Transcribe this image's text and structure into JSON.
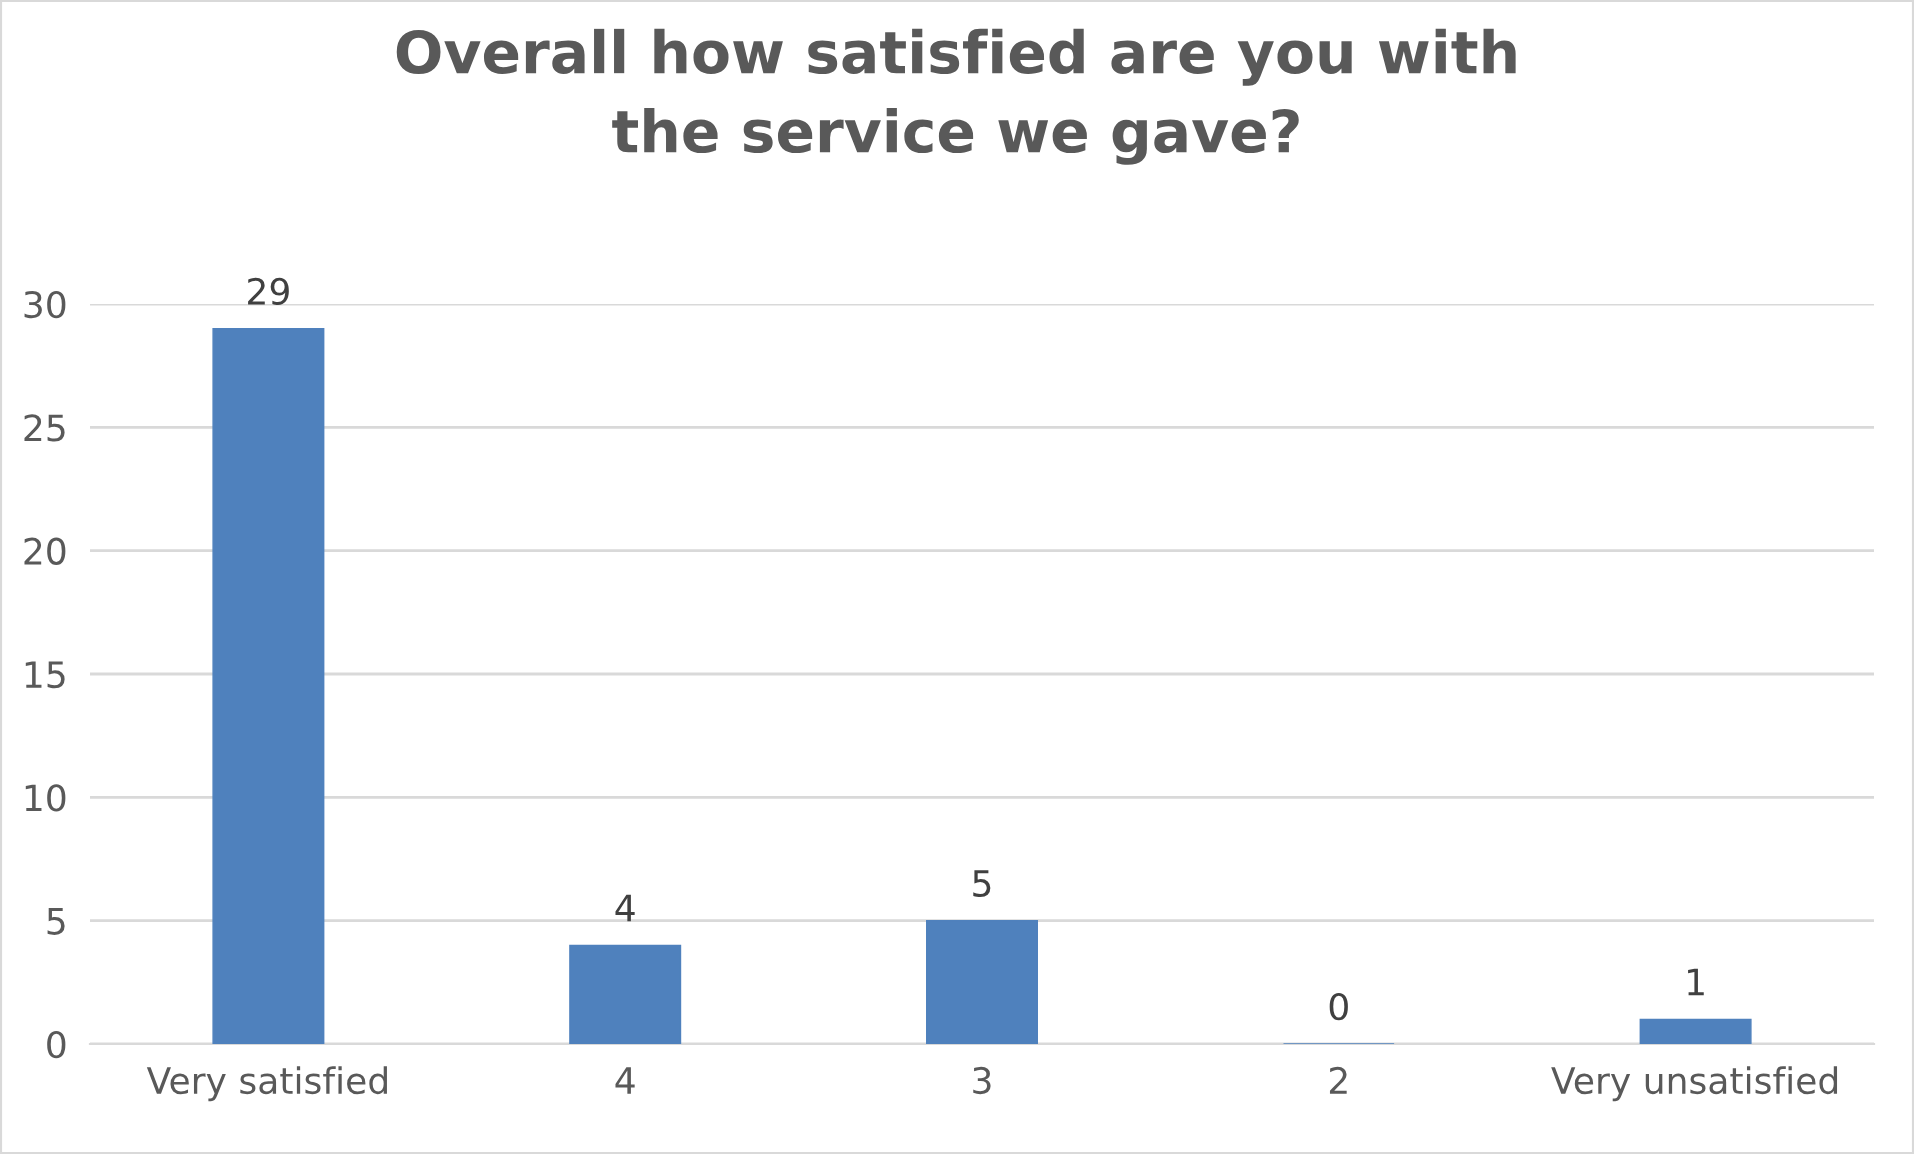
{
  "chart_data": {
    "type": "bar",
    "title": "Overall how satisfied are you with\nthe service we gave?",
    "categories": [
      "Very satisfied",
      "4",
      "3",
      "2",
      "Very unsatisfied"
    ],
    "values": [
      29,
      4,
      5,
      0,
      1
    ],
    "color": "#4f81bd",
    "ylim": [
      0,
      30
    ],
    "yticks": [
      0,
      5,
      10,
      15,
      20,
      25,
      30
    ],
    "grid": "y",
    "data_labels": true
  }
}
